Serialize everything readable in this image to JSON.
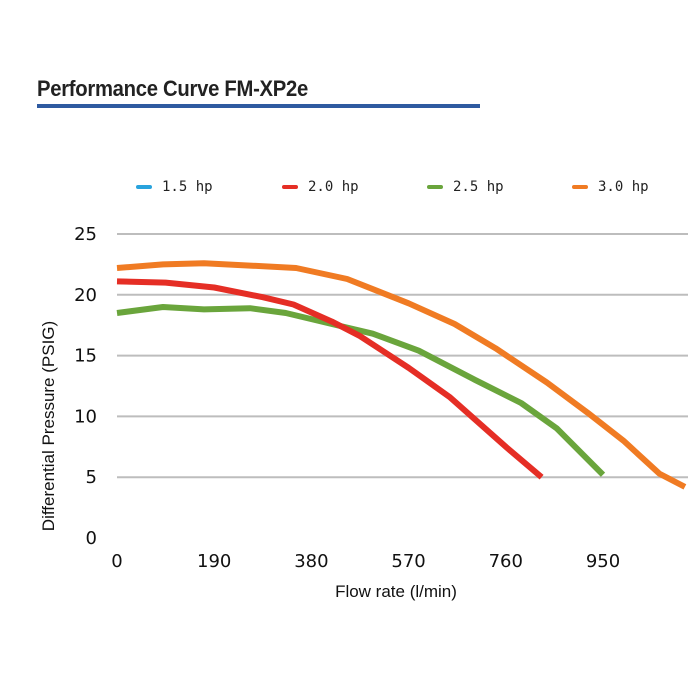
{
  "header": {
    "title": "Performance Curve FM-XP2e",
    "rule_color": "#2e5aa0"
  },
  "chart_data": {
    "type": "line",
    "title": "Performance Curve FM-XP2e",
    "xlabel": "Flow rate (l/min)",
    "ylabel": "Differential Pressure (PSIG)",
    "xlim": [
      0,
      1140
    ],
    "ylim": [
      0,
      25
    ],
    "x_ticks": [
      0,
      190,
      380,
      570,
      760,
      950
    ],
    "y_ticks": [
      0,
      5,
      10,
      15,
      20,
      25
    ],
    "grid": "horizontal",
    "legend_position": "top",
    "series": [
      {
        "name": "1.5 hp",
        "color": "#29a3dd",
        "points": []
      },
      {
        "name": "2.0 hp",
        "color": "#e52e25",
        "points": [
          [
            0,
            21.1
          ],
          [
            95,
            21.0
          ],
          [
            190,
            20.6
          ],
          [
            285,
            19.8
          ],
          [
            345,
            19.2
          ],
          [
            420,
            17.8
          ],
          [
            475,
            16.6
          ],
          [
            570,
            14.0
          ],
          [
            650,
            11.6
          ],
          [
            760,
            7.5
          ],
          [
            830,
            5.0
          ]
        ]
      },
      {
        "name": "2.5 hp",
        "color": "#6aa53c",
        "points": [
          [
            0,
            18.5
          ],
          [
            90,
            19.0
          ],
          [
            170,
            18.8
          ],
          [
            260,
            18.9
          ],
          [
            330,
            18.5
          ],
          [
            420,
            17.6
          ],
          [
            500,
            16.8
          ],
          [
            590,
            15.4
          ],
          [
            700,
            13.0
          ],
          [
            790,
            11.1
          ],
          [
            860,
            9.0
          ],
          [
            950,
            5.2
          ]
        ]
      },
      {
        "name": "3.0 hp",
        "color": "#f07b23",
        "points": [
          [
            0,
            22.2
          ],
          [
            90,
            22.5
          ],
          [
            170,
            22.6
          ],
          [
            260,
            22.4
          ],
          [
            350,
            22.2
          ],
          [
            450,
            21.3
          ],
          [
            570,
            19.3
          ],
          [
            660,
            17.6
          ],
          [
            740,
            15.6
          ],
          [
            840,
            12.8
          ],
          [
            920,
            10.3
          ],
          [
            990,
            8.0
          ],
          [
            1060,
            5.3
          ],
          [
            1110,
            4.2
          ]
        ]
      }
    ]
  }
}
